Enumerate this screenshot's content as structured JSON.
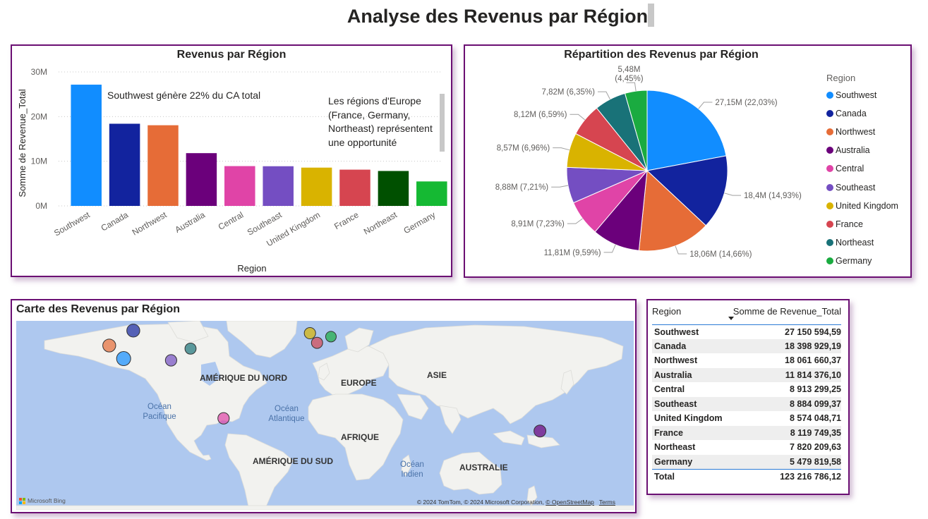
{
  "page": {
    "title": "Analyse des Revenus par Région"
  },
  "chart_data": [
    {
      "type": "bar",
      "title": "Revenus par Région",
      "xlabel": "Region",
      "ylabel": "Somme de Revenue_Total",
      "categories": [
        "Southwest",
        "Canada",
        "Northwest",
        "Australia",
        "Central",
        "Southeast",
        "United Kingdom",
        "France",
        "Northeast",
        "Germany"
      ],
      "values": [
        27150594.59,
        18398929.19,
        18061660.37,
        11814376.1,
        8913299.25,
        8884099.37,
        8574048.71,
        8119749.35,
        7820209.63,
        5479819.58
      ],
      "colors": [
        "#118dff",
        "#12239e",
        "#e66c37",
        "#6b007b",
        "#e044a7",
        "#744ec2",
        "#d9b300",
        "#d64550",
        "#197278",
        "#1aab40"
      ],
      "bar_colors_override": {
        "8": "#005000",
        "9": "#15b933"
      },
      "ylim": [
        0,
        30000000
      ],
      "yticks": [
        "0M",
        "10M",
        "20M",
        "30M"
      ],
      "ytick_values": [
        0,
        10000000,
        20000000,
        30000000
      ],
      "annotations": [
        "Southwest génère 22% du CA total",
        "Les régions d'Europe (France, Germany, Northeast) représentent une opportunité"
      ]
    },
    {
      "type": "pie",
      "title": "Répartition des Revenus par Région",
      "legend_title": "Region",
      "legend_position": "right",
      "categories": [
        "Southwest",
        "Canada",
        "Northwest",
        "Australia",
        "Central",
        "Southeast",
        "United Kingdom",
        "France",
        "Northeast",
        "Germany"
      ],
      "values": [
        27150594.59,
        18398929.19,
        18061660.37,
        11814376.1,
        8913299.25,
        8884099.37,
        8574048.71,
        8119749.35,
        7820209.63,
        5479819.58
      ],
      "colors": [
        "#118dff",
        "#12239e",
        "#e66c37",
        "#6b007b",
        "#e044a7",
        "#744ec2",
        "#d9b300",
        "#d64550",
        "#197278",
        "#1aab40"
      ],
      "data_labels": [
        "27,15M (22,03%)",
        "18,4M (14,93%)",
        "18,06M (14,66%)",
        "11,81M (9,59%)",
        "8,91M (7,23%)",
        "8,88M (7,21%)",
        "8,57M (6,96%)",
        "8,12M (6,59%)",
        "7,82M (6,35%)",
        "5,48M (4,45%)"
      ]
    },
    {
      "type": "table",
      "columns": [
        "Region",
        "Somme de Revenue_Total"
      ],
      "rows": [
        [
          "Southwest",
          "27 150 594,59"
        ],
        [
          "Canada",
          "18 398 929,19"
        ],
        [
          "Northwest",
          "18 061 660,37"
        ],
        [
          "Australia",
          "11 814 376,10"
        ],
        [
          "Central",
          "8 913 299,25"
        ],
        [
          "Southeast",
          "8 884 099,37"
        ],
        [
          "United Kingdom",
          "8 574 048,71"
        ],
        [
          "France",
          "8 119 749,35"
        ],
        [
          "Northeast",
          "7 820 209,63"
        ],
        [
          "Germany",
          "5 479 819,58"
        ]
      ],
      "total_label": "Total",
      "total_value": "123 216 786,12",
      "sorted_column": "Somme de Revenue_Total",
      "sort_direction": "descending"
    }
  ],
  "map": {
    "title": "Carte des Revenus par Région",
    "continent_labels": [
      "AMÉRIQUE DU NORD",
      "EUROPE",
      "ASIE",
      "AFRIQUE",
      "AMÉRIQUE DU SUD",
      "AUSTRALIE"
    ],
    "ocean_labels": [
      "Océan Pacifique",
      "Océan Atlantique",
      "Océan Indien"
    ],
    "bubbles": [
      {
        "region": "Southwest",
        "lat": 33.4,
        "lon": -112.0,
        "value": 27150594.59,
        "color": "#118dff"
      },
      {
        "region": "Canada",
        "lat": 56.1,
        "lon": -106.3,
        "value": 18398929.19,
        "color": "#12239e"
      },
      {
        "region": "Northwest",
        "lat": 44.0,
        "lon": -120.5,
        "value": 18061660.37,
        "color": "#e66c37"
      },
      {
        "region": "Australia",
        "lat": -25.3,
        "lon": 133.8,
        "value": 11814376.1,
        "color": "#6b007b"
      },
      {
        "region": "Central",
        "lat": -15.0,
        "lon": -53.0,
        "value": 8913299.25,
        "color": "#e044a7"
      },
      {
        "region": "Southeast",
        "lat": 32.0,
        "lon": -84.0,
        "value": 8884099.37,
        "color": "#744ec2"
      },
      {
        "region": "United Kingdom",
        "lat": 54.0,
        "lon": -2.0,
        "value": 8574048.71,
        "color": "#d9b300"
      },
      {
        "region": "France",
        "lat": 46.2,
        "lon": 2.2,
        "value": 8119749.35,
        "color": "#d64550"
      },
      {
        "region": "Northeast",
        "lat": 41.5,
        "lon": -72.5,
        "value": 7820209.63,
        "color": "#197278"
      },
      {
        "region": "Germany",
        "lat": 51.2,
        "lon": 10.4,
        "value": 5479819.58,
        "color": "#1aab40"
      }
    ],
    "credit": "© 2024 TomTom, © 2024 Microsoft Corporation,",
    "credit_osm": "© OpenStreetMap",
    "credit_terms": "Terms",
    "provider": "Microsoft Bing"
  }
}
